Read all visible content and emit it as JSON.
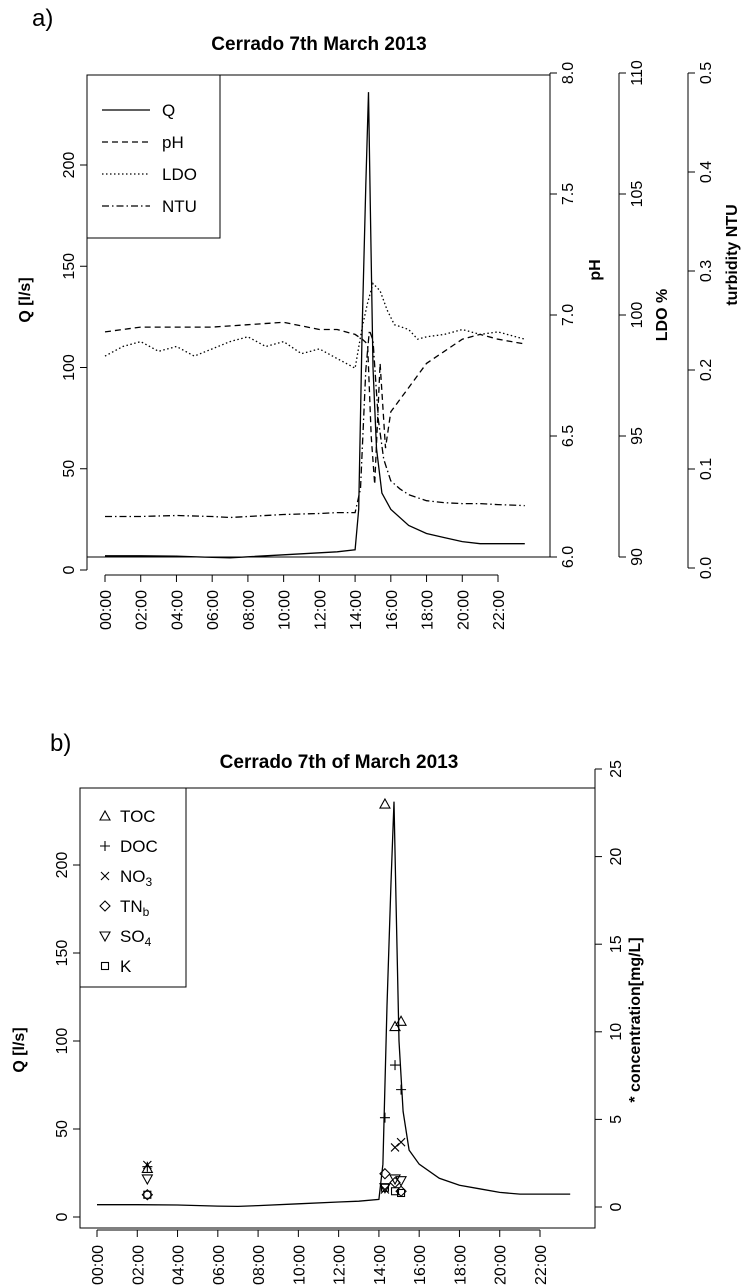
{
  "chart_data": [
    {
      "panel_label": "a)",
      "type": "line",
      "title": "Cerrado 7th March 2013",
      "xlabel": "",
      "x_ticks": [
        "00:00",
        "02:00",
        "04:00",
        "06:00",
        "08:00",
        "10:00",
        "12:00",
        "14:00",
        "16:00",
        "18:00",
        "20:00",
        "22:00"
      ],
      "legend": {
        "position": "top-left",
        "entries": [
          "Q",
          "pH",
          "LDO",
          "NTU"
        ]
      },
      "axes": [
        {
          "name": "left",
          "label": "Q [l/s]",
          "range": [
            0,
            250
          ],
          "ticks": [
            "0",
            "50",
            "100",
            "150",
            "200"
          ]
        },
        {
          "name": "ph",
          "label": "pH",
          "range": [
            6.0,
            8.0
          ],
          "ticks": [
            "6.0",
            "6.5",
            "7.0",
            "7.5",
            "8.0"
          ]
        },
        {
          "name": "ldo",
          "label": "LDO %",
          "range": [
            90,
            110
          ],
          "ticks": [
            "90",
            "95",
            "100",
            "105",
            "110"
          ]
        },
        {
          "name": "ntu",
          "label": "turbidity NTU",
          "range": [
            0.0,
            0.5
          ],
          "ticks": [
            "0.0",
            "0.1",
            "0.2",
            "0.3",
            "0.4",
            "0.5"
          ]
        }
      ],
      "series": [
        {
          "name": "Q",
          "axis": "left",
          "style": "solid",
          "x": [
            0,
            2,
            4,
            6,
            7,
            8,
            10,
            12,
            13,
            14,
            14.2,
            14.4,
            14.6,
            14.75,
            14.85,
            15,
            15.2,
            15.5,
            16,
            17,
            18,
            19,
            20,
            21,
            22,
            23.5
          ],
          "y": [
            7,
            7,
            6.8,
            6.2,
            6,
            6.5,
            7.5,
            8.5,
            9,
            10,
            30,
            120,
            190,
            236,
            180,
            100,
            60,
            38,
            30,
            22,
            18,
            16,
            14,
            13,
            13,
            13
          ]
        },
        {
          "name": "pH",
          "axis": "ph",
          "style": "dashed",
          "x": [
            0,
            2,
            4,
            6,
            8,
            10,
            12,
            13,
            14,
            14.4,
            14.7,
            14.9,
            15.1,
            15.4,
            15.7,
            16,
            17,
            18,
            19,
            20,
            21,
            22,
            23.5
          ],
          "y": [
            6.93,
            6.95,
            6.95,
            6.95,
            6.96,
            6.97,
            6.94,
            6.94,
            6.92,
            6.9,
            6.88,
            6.5,
            6.3,
            6.8,
            6.45,
            6.6,
            6.7,
            6.8,
            6.85,
            6.9,
            6.92,
            6.9,
            6.88
          ]
        },
        {
          "name": "LDO",
          "axis": "ldo",
          "style": "dotted",
          "x": [
            0,
            1,
            2,
            3,
            4,
            5,
            6,
            7,
            8,
            9,
            10,
            11,
            12,
            13,
            14,
            14.4,
            14.7,
            15,
            15.4,
            15.8,
            16.2,
            17,
            17.5,
            18,
            19,
            20,
            21,
            22,
            23,
            23.5
          ],
          "y": [
            98.3,
            98.7,
            98.9,
            98.5,
            98.7,
            98.3,
            98.6,
            98.9,
            99.1,
            98.7,
            98.9,
            98.4,
            98.6,
            98.2,
            97.8,
            99.5,
            100.5,
            101.3,
            101,
            100.2,
            99.6,
            99.4,
            99,
            99.1,
            99.2,
            99.4,
            99.2,
            99.3,
            99.1,
            99
          ]
        },
        {
          "name": "NTU",
          "axis": "ntu",
          "style": "dashdot",
          "x": [
            0,
            2,
            4,
            6,
            7,
            8,
            10,
            12,
            13,
            14,
            14.3,
            14.6,
            14.8,
            15,
            15.3,
            15.6,
            16,
            16.5,
            17,
            18,
            19,
            20,
            21,
            22,
            23.5
          ],
          "y": [
            0.052,
            0.052,
            0.053,
            0.052,
            0.051,
            0.052,
            0.054,
            0.055,
            0.056,
            0.056,
            0.08,
            0.2,
            0.24,
            0.23,
            0.15,
            0.11,
            0.088,
            0.08,
            0.074,
            0.068,
            0.066,
            0.065,
            0.065,
            0.064,
            0.063
          ]
        }
      ]
    },
    {
      "panel_label": "b)",
      "type": "scatter",
      "title": "Cerrado 7th of March 2013",
      "xlabel": "",
      "x_ticks": [
        "00:00",
        "02:00",
        "04:00",
        "06:00",
        "08:00",
        "10:00",
        "12:00",
        "14:00",
        "16:00",
        "18:00",
        "20:00",
        "22:00"
      ],
      "legend": {
        "position": "top-left",
        "entries": [
          "TOC",
          "DOC",
          "NO3",
          "TNb",
          "SO4",
          "K"
        ]
      },
      "axes": [
        {
          "name": "left",
          "label": "Q [l/s]",
          "range": [
            0,
            250
          ],
          "ticks": [
            "0",
            "50",
            "100",
            "150",
            "200"
          ]
        },
        {
          "name": "right",
          "label": "* concentration[mg/L]",
          "range": [
            0,
            25
          ],
          "ticks": [
            "0",
            "5",
            "10",
            "15",
            "20",
            "25"
          ]
        }
      ],
      "q_line": {
        "name": "Q",
        "x": [
          0,
          2,
          4,
          6,
          7,
          8,
          10,
          12,
          13,
          14,
          14.2,
          14.4,
          14.6,
          14.75,
          14.85,
          15,
          15.2,
          15.5,
          16,
          17,
          18,
          19,
          20,
          21,
          22,
          23.5
        ],
        "y": [
          7,
          7,
          6.8,
          6.2,
          6,
          6.5,
          7.5,
          8.5,
          9,
          10,
          30,
          120,
          190,
          236,
          180,
          100,
          60,
          38,
          30,
          22,
          18,
          16,
          14,
          13,
          13,
          13
        ]
      },
      "series": [
        {
          "name": "TOC",
          "marker": "triangle-up",
          "x": [
            2.5,
            14.3,
            14.8,
            15.1
          ],
          "y": [
            2.2,
            23.0,
            10.3,
            10.6
          ]
        },
        {
          "name": "DOC",
          "marker": "plus",
          "x": [
            2.5,
            14.3,
            14.8,
            15.1
          ],
          "y": [
            2.3,
            5.1,
            8.1,
            6.7
          ]
        },
        {
          "name": "NO3",
          "marker": "cross",
          "x": [
            2.5,
            14.3,
            14.8,
            15.1
          ],
          "y": [
            2.4,
            1.0,
            3.4,
            3.7
          ]
        },
        {
          "name": "TNb",
          "marker": "diamond",
          "x": [
            2.5,
            14.3,
            14.8,
            15.1
          ],
          "y": [
            0.7,
            1.9,
            1.4,
            0.9
          ]
        },
        {
          "name": "SO4",
          "marker": "triangle-down",
          "x": [
            2.5,
            14.3,
            14.8,
            15.1
          ],
          "y": [
            1.6,
            1.1,
            1.6,
            1.5
          ]
        },
        {
          "name": "K",
          "marker": "square",
          "x": [
            2.5,
            14.3,
            14.8,
            15.1
          ],
          "y": [
            0.7,
            1.1,
            0.9,
            0.8
          ]
        }
      ]
    }
  ]
}
